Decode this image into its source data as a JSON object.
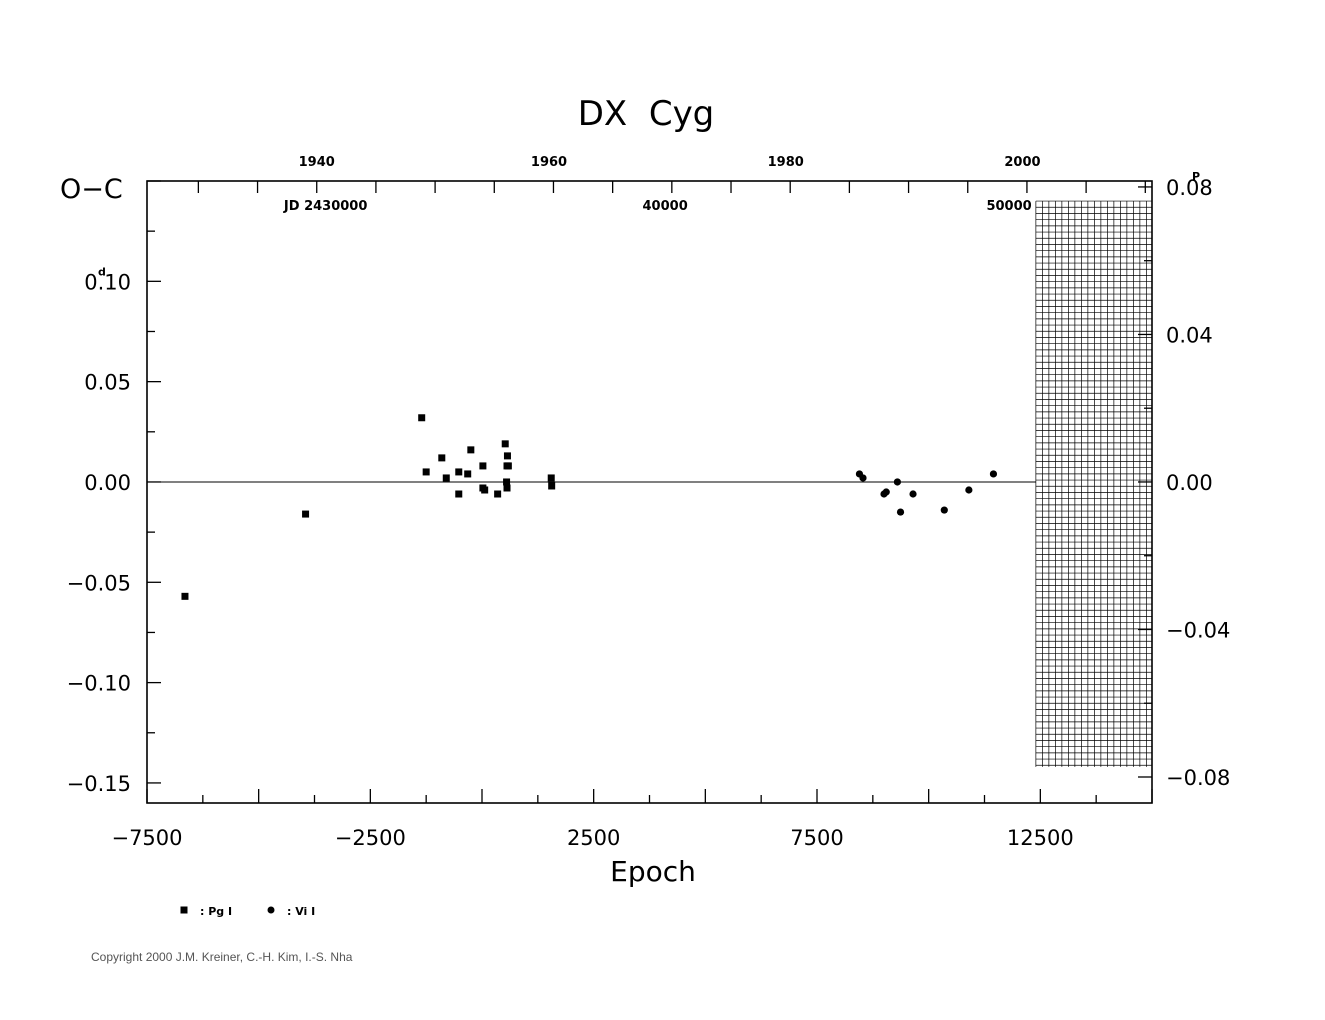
{
  "chart_data": {
    "type": "scatter",
    "title": "DX  Cyg",
    "xlabel": "Epoch",
    "ylabel": "O−C",
    "xlim": [
      -7500,
      15000
    ],
    "ylim": [
      -0.16,
      0.15
    ],
    "grid": false,
    "zero_line": true,
    "bottom_ticks": [
      {
        "value": -7500,
        "label": "−7500"
      },
      {
        "value": -2500,
        "label": "−2500"
      },
      {
        "value": 2500,
        "label": "2500"
      },
      {
        "value": 7500,
        "label": "7500"
      },
      {
        "value": 12500,
        "label": "12500"
      }
    ],
    "left_ticks": [
      {
        "value": 0.1,
        "label": "0.10",
        "unit_sup": "d"
      },
      {
        "value": 0.05,
        "label": "0.05"
      },
      {
        "value": 0.0,
        "label": "0.00"
      },
      {
        "value": -0.05,
        "label": "−0.05"
      },
      {
        "value": -0.1,
        "label": "−0.10"
      },
      {
        "value": -0.15,
        "label": "−0.15"
      }
    ],
    "right_ticks": [
      {
        "value": 0.08,
        "label": "0.08",
        "unit_sup": "P"
      },
      {
        "value": 0.04,
        "label": "0.04"
      },
      {
        "value": 0.0,
        "label": "0.00"
      },
      {
        "value": -0.04,
        "label": "−0.04"
      },
      {
        "value": -0.08,
        "label": "−0.08"
      }
    ],
    "right_axis_scale": 1.838,
    "top_year_ticks": [
      {
        "epoch": -3700,
        "label": "1940"
      },
      {
        "epoch": 1500,
        "label": "1960"
      },
      {
        "epoch": 6800,
        "label": "1980"
      },
      {
        "epoch": 12100,
        "label": "2000"
      }
    ],
    "top_jd_labels": [
      {
        "epoch": -3500,
        "label": "JD  2430000"
      },
      {
        "epoch": 4100,
        "label": "40000"
      },
      {
        "epoch": 11800,
        "label": "50000"
      }
    ],
    "hatched_region": {
      "x_from": 12400,
      "x_to": 15000,
      "y_from": -0.142,
      "y_to": 0.14
    },
    "series": [
      {
        "name": "Pg I",
        "marker": "square",
        "points": [
          [
            -6650,
            -0.057
          ],
          [
            -3950,
            -0.016
          ],
          [
            -1350,
            0.032
          ],
          [
            -1250,
            0.005
          ],
          [
            -900,
            0.012
          ],
          [
            -800,
            0.002
          ],
          [
            -520,
            0.005
          ],
          [
            -520,
            -0.006
          ],
          [
            -320,
            0.004
          ],
          [
            -250,
            0.016
          ],
          [
            20,
            -0.003
          ],
          [
            20,
            0.008
          ],
          [
            60,
            -0.004
          ],
          [
            350,
            -0.006
          ],
          [
            520,
            0.019
          ],
          [
            550,
            0.0
          ],
          [
            560,
            0.008
          ],
          [
            560,
            -0.003
          ],
          [
            570,
            0.013
          ],
          [
            590,
            0.008
          ],
          [
            1550,
            0.002
          ],
          [
            1560,
            -0.002
          ]
        ]
      },
      {
        "name": "Vi I",
        "marker": "circle",
        "points": [
          [
            8450,
            0.004
          ],
          [
            8530,
            0.002
          ],
          [
            9000,
            -0.006
          ],
          [
            9050,
            -0.005
          ],
          [
            9300,
            0.0
          ],
          [
            9370,
            -0.015
          ],
          [
            9650,
            -0.006
          ],
          [
            10350,
            -0.014
          ],
          [
            10900,
            -0.004
          ],
          [
            11450,
            0.004
          ]
        ]
      }
    ],
    "legend": [
      {
        "marker": "square",
        "label": ": Pg I"
      },
      {
        "marker": "circle",
        "label": ": Vi I"
      }
    ]
  },
  "footer": {
    "copyright": "Copyright 2000 J.M. Kreiner, C.-H. Kim, I.-S. Nha"
  }
}
